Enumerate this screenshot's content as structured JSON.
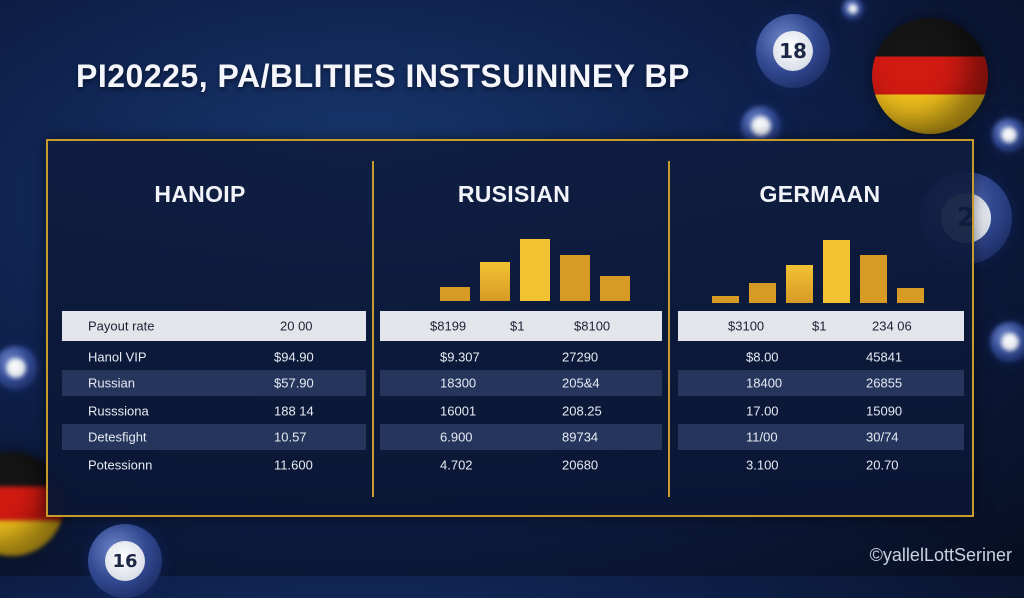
{
  "page": {
    "title": "PI20225, PA/BLITIES INSTSUININEY BP",
    "brand": "©yallelLottSeriner"
  },
  "colors": {
    "frame_gold": "#c79b2c",
    "bar_gold_light": "#f2c233",
    "bar_gold_dark": "#d79a25",
    "header_row": "#e3e5ea",
    "band_row": "#25355c"
  },
  "decor": {
    "balls": [
      {
        "icon": "lottery-ball-icon",
        "number": "18"
      },
      {
        "icon": "lottery-ball-icon",
        "number": "2"
      },
      {
        "icon": "lottery-ball-icon",
        "number": "16"
      },
      {
        "icon": "german-flag-ball-icon"
      }
    ]
  },
  "sections": [
    {
      "title": "HANOIP",
      "bars": [],
      "header": [
        "Payout rate",
        "20 00"
      ],
      "rows": [
        [
          "Hanol VIP",
          "$94.90"
        ],
        [
          "Russian",
          "$57.90"
        ],
        [
          "Russsiona",
          "188 14"
        ],
        [
          "Detesfight",
          "10.57"
        ],
        [
          "Potessionn",
          "11.600"
        ]
      ]
    },
    {
      "title": "RUSISIAN",
      "bars": [
        0.17,
        0.49,
        0.78,
        0.57,
        0.31
      ],
      "header": [
        "$8199",
        "$1",
        "$8100"
      ],
      "rows": [
        [
          "$9.307",
          "27290"
        ],
        [
          "18300",
          "205&4"
        ],
        [
          "16001",
          "208.25"
        ],
        [
          "6.900",
          "89734"
        ],
        [
          "4.702",
          "20680"
        ]
      ]
    },
    {
      "title": "GERMAAN",
      "bars": [
        0.08,
        0.24,
        0.46,
        0.77,
        0.58,
        0.18
      ],
      "header": [
        "$3100",
        "$1",
        "234 06"
      ],
      "rows": [
        [
          "$8.00",
          "45841"
        ],
        [
          "18400",
          "26855"
        ],
        [
          "17.00",
          "15090"
        ],
        [
          "11/00",
          "30/74"
        ],
        [
          "3.100",
          "20.70"
        ]
      ]
    }
  ]
}
